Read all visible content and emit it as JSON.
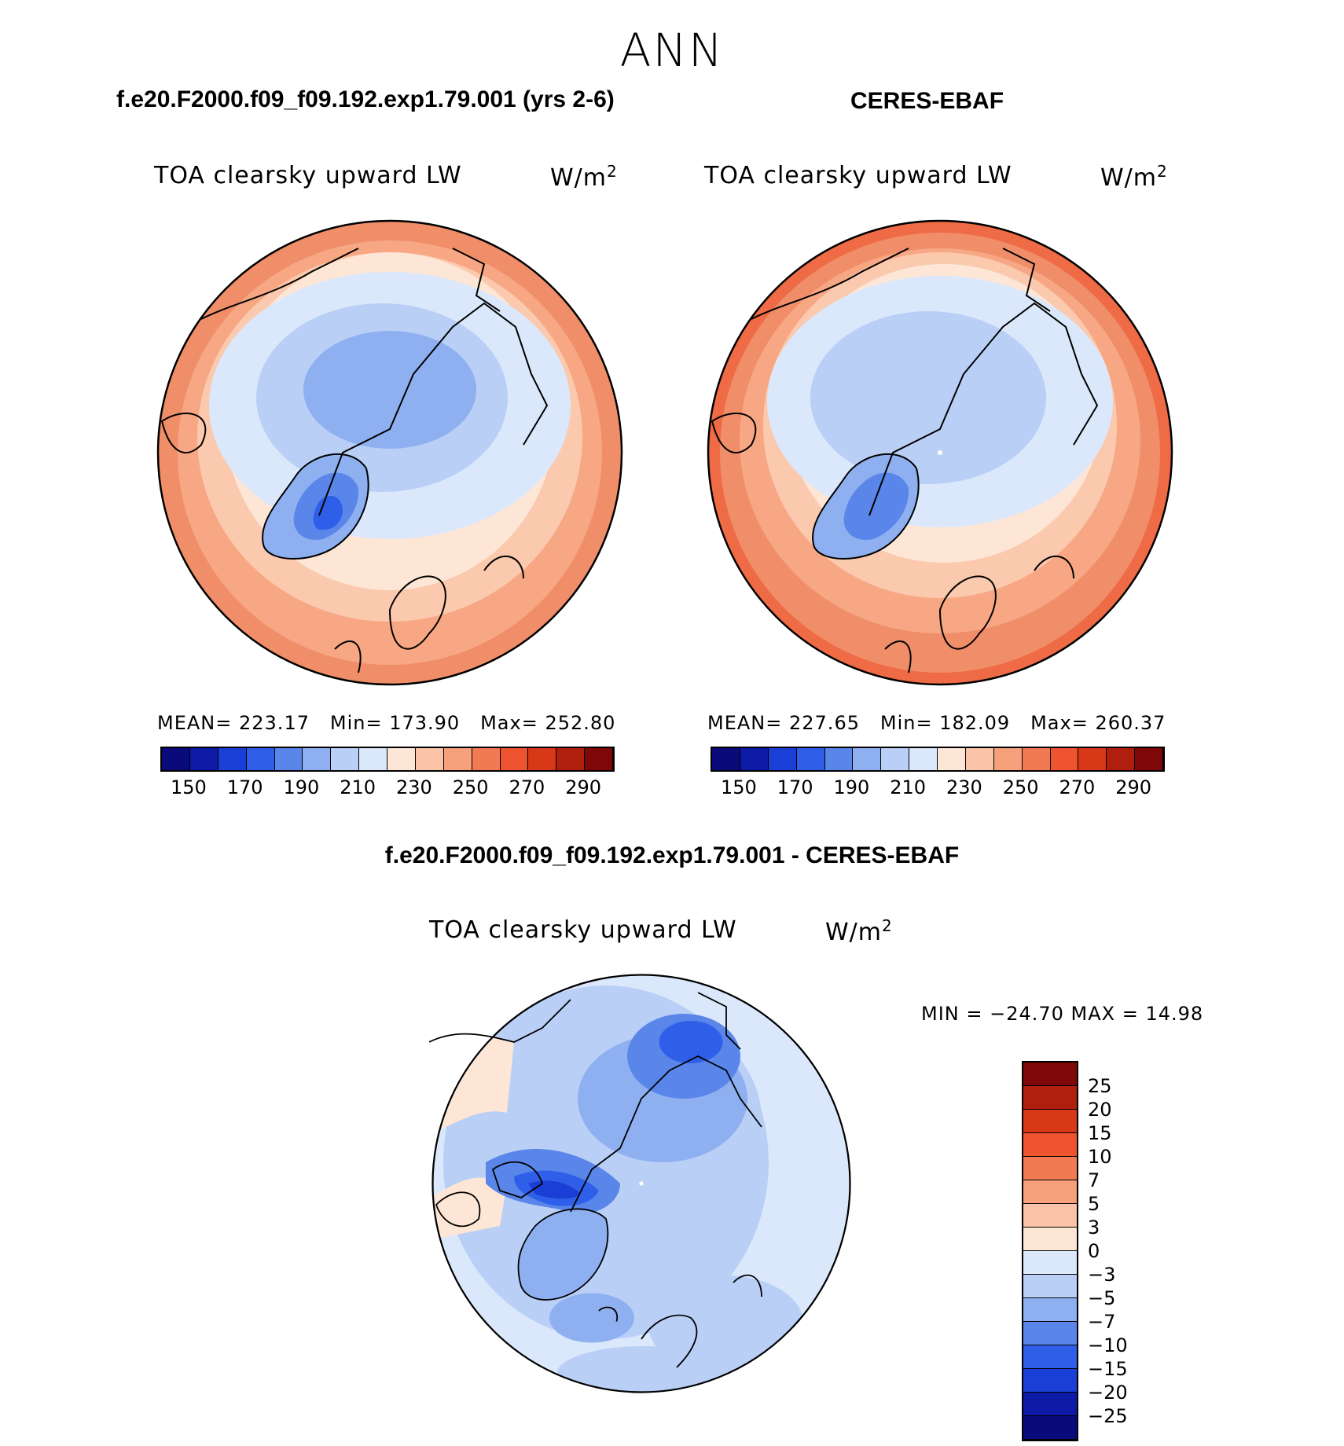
{
  "figure": {
    "title": "ANN"
  },
  "panels": [
    {
      "heading": "f.e20.F2000.f09_f09.192.exp1.79.001 (yrs 2-6)",
      "variable": "TOA clearsky upward LW",
      "units": "W/m",
      "units_exp": "2",
      "stats": {
        "mean_label": "MEAN=",
        "mean": "223.17",
        "min_label": "Min=",
        "min": "173.90",
        "max_label": "Max=",
        "max": "252.80"
      }
    },
    {
      "heading": "CERES-EBAF",
      "variable": "TOA clearsky upward LW",
      "units": "W/m",
      "units_exp": "2",
      "stats": {
        "mean_label": "MEAN=",
        "mean": "227.65",
        "min_label": "Min=",
        "min": "182.09",
        "max_label": "Max=",
        "max": "260.37"
      }
    },
    {
      "heading": "f.e20.F2000.f09_f09.192.exp1.79.001 - CERES-EBAF",
      "variable": "TOA clearsky upward LW",
      "units": "W/m",
      "units_exp": "2",
      "minmax": "MIN = −24.70 MAX =  14.98"
    }
  ],
  "colorbar_abs": {
    "colors": [
      "#0a0a7a",
      "#0c1aa6",
      "#1a3fd6",
      "#2f5fe8",
      "#5a86ea",
      "#8fb0f0",
      "#b9cff6",
      "#dbe8fb",
      "#fde6d6",
      "#fbc4a8",
      "#f7a07c",
      "#f27a52",
      "#ee5430",
      "#d83818",
      "#b01e0e",
      "#7e0808"
    ],
    "ticks": [
      "150",
      "170",
      "190",
      "210",
      "230",
      "250",
      "270",
      "290"
    ]
  },
  "colorbar_diff": {
    "colors": [
      "#7e0808",
      "#b01e0e",
      "#d83818",
      "#ee5430",
      "#f27a52",
      "#f7a07c",
      "#fbc4a8",
      "#fde6d6",
      "#dbe8fb",
      "#b9cff6",
      "#8fb0f0",
      "#5a86ea",
      "#2f5fe8",
      "#1a3fd6",
      "#0c1aa6",
      "#0a0a7a"
    ],
    "ticks": [
      "25",
      "20",
      "15",
      "10",
      "7",
      "5",
      "3",
      "0",
      "−3",
      "−5",
      "−7",
      "−10",
      "−15",
      "−20",
      "−25"
    ]
  },
  "map_colors": {
    "warm_outer": "#f08e6a",
    "warm_mid": "#f7a783",
    "warm_light": "#fbc9ad",
    "cream": "#fde6d6",
    "pale_blue": "#dbe8fb",
    "light_blue": "#b9cff6",
    "mid_blue": "#8fb0f0",
    "blue": "#5a86ea",
    "deep_blue": "#2f5fe8",
    "dark_blue": "#1a3fd6",
    "coast": "#000000"
  }
}
